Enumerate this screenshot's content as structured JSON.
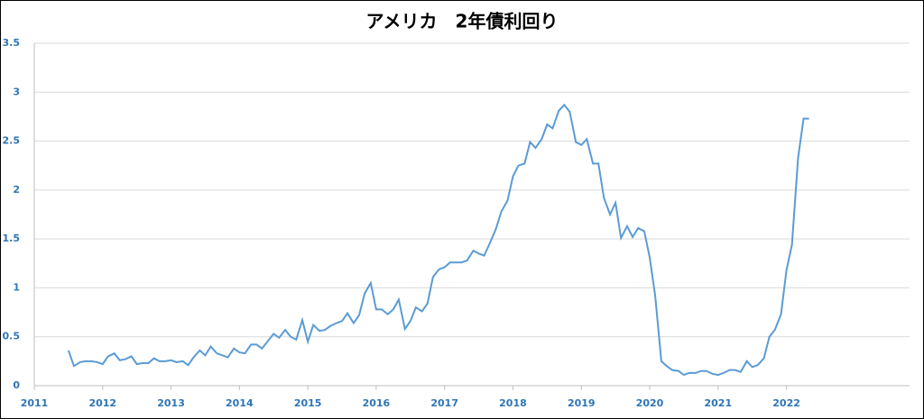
{
  "chart_data": {
    "type": "line",
    "title": "アメリカ　2年債利回り",
    "x": [
      2011.5,
      2011.58,
      2011.67,
      2011.75,
      2011.83,
      2011.92,
      2012.0,
      2012.08,
      2012.17,
      2012.25,
      2012.33,
      2012.42,
      2012.5,
      2012.58,
      2012.67,
      2012.75,
      2012.83,
      2012.92,
      2013.0,
      2013.08,
      2013.17,
      2013.25,
      2013.33,
      2013.42,
      2013.5,
      2013.58,
      2013.67,
      2013.75,
      2013.83,
      2013.92,
      2014.0,
      2014.08,
      2014.17,
      2014.25,
      2014.33,
      2014.42,
      2014.5,
      2014.58,
      2014.67,
      2014.75,
      2014.83,
      2014.92,
      2015.0,
      2015.08,
      2015.17,
      2015.25,
      2015.33,
      2015.42,
      2015.5,
      2015.58,
      2015.67,
      2015.75,
      2015.83,
      2015.92,
      2016.0,
      2016.08,
      2016.17,
      2016.25,
      2016.33,
      2016.42,
      2016.5,
      2016.58,
      2016.67,
      2016.75,
      2016.83,
      2016.92,
      2017.0,
      2017.08,
      2017.17,
      2017.25,
      2017.33,
      2017.42,
      2017.5,
      2017.58,
      2017.67,
      2017.75,
      2017.83,
      2017.92,
      2018.0,
      2018.08,
      2018.17,
      2018.25,
      2018.33,
      2018.42,
      2018.5,
      2018.58,
      2018.67,
      2018.75,
      2018.83,
      2018.92,
      2019.0,
      2019.08,
      2019.17,
      2019.25,
      2019.33,
      2019.42,
      2019.5,
      2019.58,
      2019.67,
      2019.75,
      2019.83,
      2019.92,
      2020.0,
      2020.08,
      2020.17,
      2020.25,
      2020.33,
      2020.42,
      2020.5,
      2020.58,
      2020.67,
      2020.75,
      2020.83,
      2020.92,
      2021.0,
      2021.08,
      2021.17,
      2021.25,
      2021.33,
      2021.42,
      2021.5,
      2021.58,
      2021.67,
      2021.75,
      2021.83,
      2021.92,
      2022.0,
      2022.08,
      2022.17,
      2022.25,
      2022.33
    ],
    "series": [
      {
        "color": "#5b9bd5",
        "values": [
          0.36,
          0.2,
          0.24,
          0.25,
          0.25,
          0.24,
          0.22,
          0.3,
          0.33,
          0.26,
          0.27,
          0.3,
          0.22,
          0.23,
          0.23,
          0.28,
          0.25,
          0.25,
          0.26,
          0.24,
          0.25,
          0.21,
          0.29,
          0.36,
          0.31,
          0.4,
          0.33,
          0.31,
          0.29,
          0.38,
          0.34,
          0.33,
          0.42,
          0.42,
          0.38,
          0.46,
          0.53,
          0.49,
          0.57,
          0.5,
          0.47,
          0.67,
          0.45,
          0.62,
          0.56,
          0.57,
          0.61,
          0.64,
          0.66,
          0.74,
          0.64,
          0.72,
          0.94,
          1.05,
          0.78,
          0.78,
          0.73,
          0.78,
          0.88,
          0.58,
          0.66,
          0.8,
          0.76,
          0.84,
          1.11,
          1.19,
          1.21,
          1.26,
          1.26,
          1.26,
          1.28,
          1.38,
          1.35,
          1.33,
          1.47,
          1.6,
          1.78,
          1.89,
          2.14,
          2.25,
          2.27,
          2.49,
          2.43,
          2.52,
          2.67,
          2.63,
          2.81,
          2.87,
          2.8,
          2.49,
          2.46,
          2.52,
          2.27,
          2.27,
          1.92,
          1.75,
          1.87,
          1.51,
          1.63,
          1.52,
          1.61,
          1.58,
          1.31,
          0.92,
          0.25,
          0.2,
          0.16,
          0.15,
          0.11,
          0.13,
          0.13,
          0.15,
          0.15,
          0.12,
          0.11,
          0.13,
          0.16,
          0.16,
          0.14,
          0.25,
          0.19,
          0.21,
          0.28,
          0.5,
          0.57,
          0.73,
          1.18,
          1.44,
          2.33,
          2.73,
          2.73
        ]
      }
    ],
    "xlim": [
      2011,
      2023.8
    ],
    "xticks": [
      2011,
      2012,
      2013,
      2014,
      2015,
      2016,
      2017,
      2018,
      2019,
      2020,
      2021,
      2022
    ],
    "ylim": [
      0,
      3.5
    ],
    "yticks": [
      0,
      0.5,
      1,
      1.5,
      2,
      2.5,
      3,
      3.5
    ],
    "grid": true
  }
}
